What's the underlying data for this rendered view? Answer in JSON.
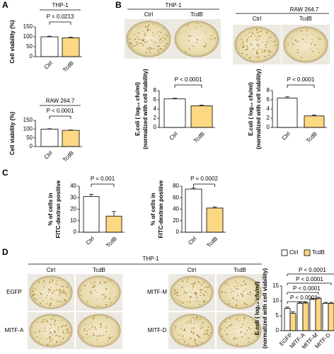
{
  "panel_labels": [
    "A",
    "B",
    "C",
    "D"
  ],
  "plates_b": [
    {
      "title": "THP-1",
      "labels": [
        "Ctrl",
        "TcdB"
      ]
    },
    {
      "title": "RAW 264.7",
      "labels": [
        "Ctrl",
        "TcdB"
      ]
    }
  ],
  "plates_d": {
    "title": "THP-1",
    "columns": [
      "Ctrl",
      "TcdB",
      "Ctrl",
      "TcdB"
    ],
    "rows": [
      "EGFP",
      "MITF-A",
      "MITF-M",
      "MITF-D"
    ]
  },
  "chart_data": [
    {
      "type": "bar",
      "title": "THP-1",
      "y_label": [
        "Cell viability (%)"
      ],
      "categories": [
        "Ctrl",
        "TcdB"
      ],
      "values": [
        100,
        95
      ],
      "errors": [
        3,
        3
      ],
      "colors": [
        "#ffffff",
        "#fdd882"
      ],
      "ylim": [
        0,
        150
      ],
      "yticks": [
        0,
        50,
        100,
        150
      ],
      "annotation": "P = 0.0213"
    },
    {
      "type": "bar",
      "title": "RAW 264.7",
      "y_label": [
        "Cell viability (%)"
      ],
      "categories": [
        "Ctrl",
        "TcdB"
      ],
      "values": [
        100,
        93
      ],
      "errors": [
        2,
        2
      ],
      "colors": [
        "#ffffff",
        "#fdd882"
      ],
      "ylim": [
        0,
        150
      ],
      "yticks": [
        0,
        50,
        100,
        150
      ],
      "annotation": "P < 0.0001"
    },
    {
      "type": "bar",
      "y_label": [
        "E.coli ( log₁₀ cfu/ml)",
        "(normalized with cell viability)"
      ],
      "categories": [
        "Ctrl",
        "TcdB"
      ],
      "values": [
        6.2,
        4.7
      ],
      "errors": [
        0.15,
        0.15
      ],
      "colors": [
        "#ffffff",
        "#fdd882"
      ],
      "ylim": [
        0,
        8
      ],
      "yticks": [
        0,
        2,
        4,
        6,
        8
      ],
      "annotation": "P < 0.0001"
    },
    {
      "type": "bar",
      "y_label": [
        "E.coli ( log₁₀ cfu/ml)",
        "(normalized with cell viability)"
      ],
      "categories": [
        "Ctrl",
        "TcdB"
      ],
      "values": [
        6.4,
        2.5
      ],
      "errors": [
        0.25,
        0.2
      ],
      "colors": [
        "#ffffff",
        "#fdd882"
      ],
      "ylim": [
        0,
        8
      ],
      "yticks": [
        0,
        2,
        4,
        6,
        8
      ],
      "annotation": "P < 0.0001"
    },
    {
      "type": "bar",
      "y_label": [
        "% of cells in",
        "FITC-dextran positive"
      ],
      "categories": [
        "Ctrl",
        "TcdB"
      ],
      "values": [
        31,
        14
      ],
      "errors": [
        2,
        4
      ],
      "colors": [
        "#ffffff",
        "#fdd882"
      ],
      "ylim": [
        0,
        40
      ],
      "yticks": [
        0,
        10,
        20,
        30,
        40
      ],
      "annotation": "P = 0.001"
    },
    {
      "type": "bar",
      "y_label": [
        "% of cells in",
        "FITC-dextran positive"
      ],
      "categories": [
        "Ctrl",
        "TcdB"
      ],
      "values": [
        75,
        42
      ],
      "errors": [
        2,
        2
      ],
      "colors": [
        "#ffffff",
        "#fdd882"
      ],
      "ylim": [
        0,
        80
      ],
      "yticks": [
        0,
        20,
        40,
        60,
        80
      ],
      "annotation": "P = 0.0002"
    },
    {
      "type": "grouped_bar",
      "y_label": [
        "E.coli ( log₁₀ cfu/ml)",
        "(normalized with cell viability)"
      ],
      "categories": [
        "EGFP",
        "MITF-A",
        "MITF-M",
        "MITF-D"
      ],
      "series": [
        {
          "name": "Ctrl",
          "color": "#ffffff",
          "values": [
            7.5,
            9.2,
            10.5,
            9.2
          ],
          "errors": [
            0.4,
            0.3,
            0.3,
            0.3
          ]
        },
        {
          "name": "TcdB",
          "color": "#fdd882",
          "values": [
            5.8,
            9.3,
            10.8,
            9.2
          ],
          "errors": [
            0.5,
            0.3,
            0.4,
            0.3
          ]
        }
      ],
      "ylim": [
        0,
        15
      ],
      "yticks": [
        0,
        5,
        10,
        15
      ],
      "annotations": [
        "P < 0.0001",
        "P < 0.0001",
        "P < 0.0001",
        "P < 0.0001"
      ],
      "legend": "top"
    }
  ]
}
